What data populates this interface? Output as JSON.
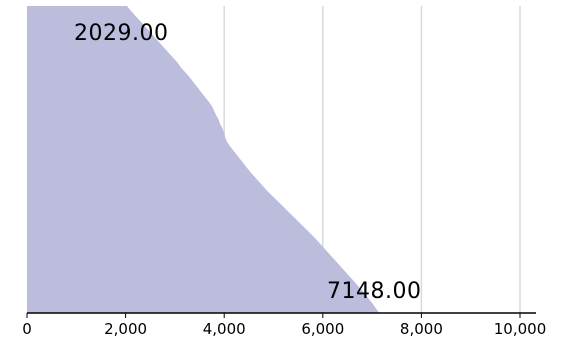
{
  "chart_data": {
    "type": "area",
    "orientation": "horizontal",
    "title": "",
    "xlabel": "",
    "ylabel": "",
    "xlim": [
      0,
      10000
    ],
    "x_ticks": [
      0,
      2000,
      4000,
      6000,
      8000,
      10000
    ],
    "x_tick_labels": [
      "0",
      "2,000",
      "4,000",
      "6,000",
      "8,000",
      "10,000"
    ],
    "grid": "vertical",
    "legend": "none",
    "fill_color": "#bcbcdc",
    "grid_color": "#d9d9d9",
    "axis_color": "#000000",
    "data_labels": [
      {
        "text": "2029.00",
        "value": 2029.0
      },
      {
        "text": "7148.00",
        "value": 7148.0
      }
    ],
    "values": [
      2029,
      2100,
      2180,
      2260,
      2340,
      2420,
      2500,
      2580,
      2660,
      2740,
      2820,
      2900,
      2980,
      3060,
      3120,
      3200,
      3280,
      3350,
      3420,
      3490,
      3560,
      3630,
      3700,
      3760,
      3800,
      3840,
      3890,
      3920,
      3970,
      4000,
      4020,
      4060,
      4120,
      4190,
      4260,
      4330,
      4400,
      4470,
      4540,
      4620,
      4700,
      4780,
      4860,
      4950,
      5040,
      5130,
      5220,
      5310,
      5400,
      5490,
      5580,
      5670,
      5760,
      5850,
      5930,
      6010,
      6090,
      6170,
      6250,
      6330,
      6410,
      6490,
      6570,
      6650,
      6730,
      6810,
      6880,
      6950,
      7020,
      7080,
      7148
    ]
  }
}
